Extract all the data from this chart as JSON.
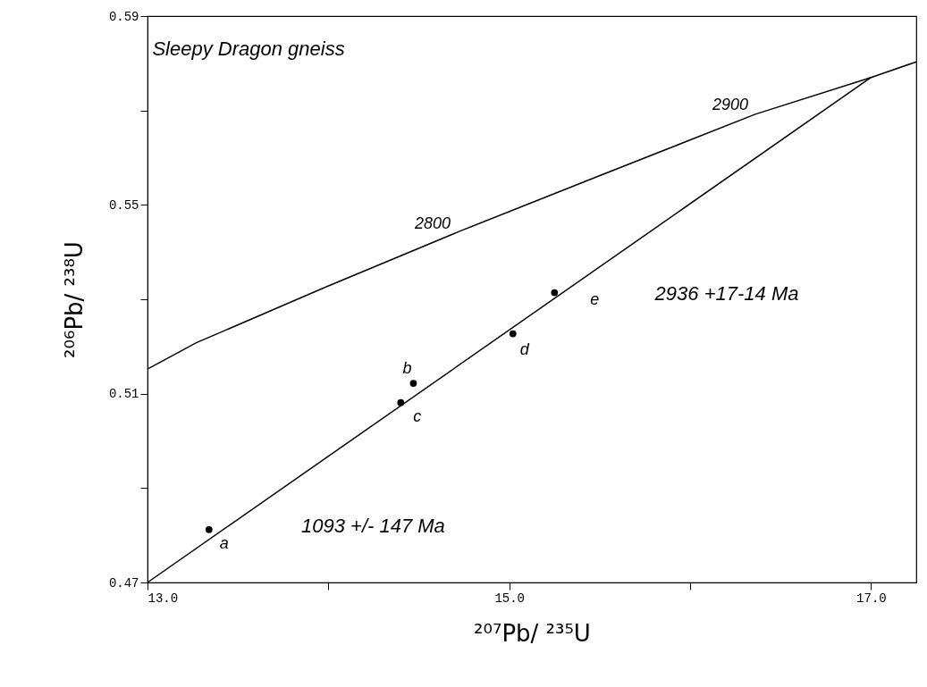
{
  "chart_data": {
    "type": "line",
    "title": "Sleepy Dragon gneiss",
    "xlabel": "²⁰⁷Pb/ ²³⁵U",
    "ylabel": "²⁰⁶Pb/ ²³⁸U",
    "xlim": [
      13.0,
      17.25
    ],
    "ylim": [
      0.47,
      0.59
    ],
    "xticks": [
      {
        "value": 13,
        "label": "13.0"
      },
      {
        "value": 14,
        "label": null
      },
      {
        "value": 15,
        "label": "15.0"
      },
      {
        "value": 16,
        "label": null
      },
      {
        "value": 17,
        "label": "17.0"
      }
    ],
    "yticks": [
      0.47,
      {
        "value": 0.49,
        "label": null
      },
      0.51,
      {
        "value": 0.53,
        "label": null
      },
      0.55,
      {
        "value": 0.57,
        "label": null
      },
      0.59
    ],
    "grid": false,
    "series": [
      {
        "color": "#000000",
        "x": [
          13.0,
          13.27,
          13.98,
          14.725,
          15.52,
          16.36,
          17.0,
          17.25
        ],
        "values": [
          0.5152,
          0.5208,
          0.5325,
          0.5444,
          0.5565,
          0.5692,
          0.577,
          0.5803
        ]
      },
      {
        "color": "#000000",
        "x": [
          13.0,
          17.0
        ],
        "values": [
          0.47,
          0.577
        ]
      },
      {
        "type": "scatter",
        "color": "#000000",
        "marker": "circle",
        "x": [
          13.34,
          14.4,
          14.47,
          15.02,
          15.25
        ],
        "values": [
          0.4812,
          0.5081,
          0.5122,
          0.5227,
          0.5314
        ]
      }
    ],
    "annotations": [
      {
        "text": "a",
        "x": 13.34,
        "y": 0.4812
      },
      {
        "text": "b",
        "x": 14.47,
        "y": 0.5122
      },
      {
        "text": "c",
        "x": 14.4,
        "y": 0.5081
      },
      {
        "text": "d",
        "x": 15.02,
        "y": 0.5227
      },
      {
        "text": "e",
        "x": 15.25,
        "y": 0.5314
      },
      {
        "text": "2800",
        "x": 14.725,
        "y": 0.5444
      },
      {
        "text": "2900",
        "x": 16.36,
        "y": 0.5692
      },
      "2936 +17-14 Ma",
      "1093 +/- 147 Ma"
    ]
  }
}
